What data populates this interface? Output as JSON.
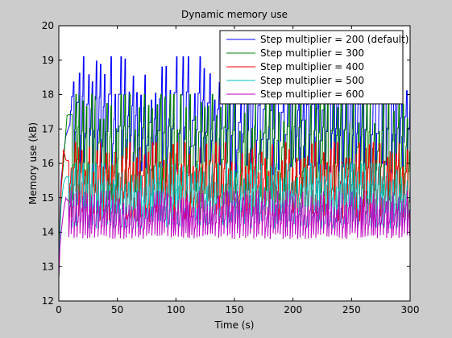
{
  "chart_data": {
    "type": "line",
    "title": "Dynamic memory use",
    "xlabel": "Time (s)",
    "ylabel": "Memory use (kB)",
    "xlim": [
      0,
      300
    ],
    "ylim": [
      12,
      20
    ],
    "xticks": [
      0,
      50,
      100,
      150,
      200,
      250,
      300
    ],
    "yticks": [
      12,
      13,
      14,
      15,
      16,
      17,
      18,
      19,
      20
    ],
    "grid": false,
    "legend_position": "top-right",
    "series": [
      {
        "name": "Step multiplier = 200 (default)",
        "color": "#0000ff",
        "low": 15.6,
        "high": 18.8,
        "period": 4.3,
        "peak_max": 19.1,
        "start": [
          [
            0,
            12.7
          ],
          [
            1,
            14.6
          ],
          [
            2,
            15.5
          ],
          [
            4,
            16.2
          ],
          [
            6,
            16.8
          ],
          [
            9,
            17.1
          ]
        ]
      },
      {
        "name": "Step multiplier = 300",
        "color": "#008000",
        "low": 14.8,
        "high": 17.8,
        "period": 3.7,
        "peak_max": 18.0,
        "start": [
          [
            0,
            12.7
          ],
          [
            1,
            14.4
          ],
          [
            2,
            15.3
          ],
          [
            4,
            16.0
          ],
          [
            7,
            17.4
          ]
        ]
      },
      {
        "name": "Step multiplier = 400",
        "color": "#ff0000",
        "low": 14.3,
        "high": 16.3,
        "period": 3.0,
        "peak_max": 16.6,
        "start": [
          [
            0,
            12.7
          ],
          [
            1,
            14.2
          ],
          [
            2,
            15.2
          ],
          [
            4,
            16.4
          ],
          [
            6,
            16.1
          ]
        ]
      },
      {
        "name": "Step multiplier = 500",
        "color": "#00bfbf",
        "low": 14.1,
        "high": 15.8,
        "period": 2.6,
        "peak_max": 16.0,
        "start": [
          [
            0,
            12.7
          ],
          [
            1,
            14.0
          ],
          [
            2,
            14.8
          ],
          [
            4,
            15.4
          ],
          [
            6,
            15.6
          ]
        ]
      },
      {
        "name": "Step multiplier = 600",
        "color": "#bf00bf",
        "low": 13.8,
        "high": 15.0,
        "period": 2.2,
        "peak_max": 15.2,
        "start": [
          [
            0,
            12.7
          ],
          [
            1,
            13.6
          ],
          [
            2,
            14.0
          ],
          [
            4,
            14.6
          ],
          [
            6,
            15.0
          ]
        ]
      }
    ]
  }
}
